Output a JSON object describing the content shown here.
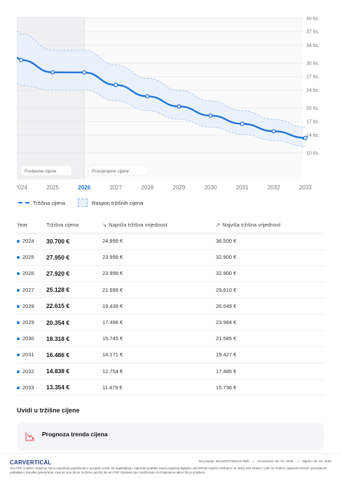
{
  "chart_data": {
    "type": "line",
    "x": [
      "2024",
      "2025",
      "2026",
      "2027",
      "2028",
      "2029",
      "2030",
      "2031",
      "2032",
      "2033"
    ],
    "series": [
      {
        "name": "Tržišna cijena",
        "values": [
          30700,
          27950,
          27920,
          25128,
          22615,
          20354,
          18318,
          16486,
          14838,
          13354
        ]
      },
      {
        "name": "Raspon tržišnih cijena (min)",
        "values": [
          24999,
          23999,
          23999,
          21599,
          19439,
          17496,
          15745,
          14171,
          12754,
          11479
        ]
      },
      {
        "name": "Raspon tržišnih cijena (max)",
        "values": [
          36500,
          32900,
          32900,
          29610,
          26649,
          23984,
          21585,
          19427,
          17485,
          15736
        ]
      }
    ],
    "y_ticks": [
      "40 tis.",
      "37 tis.",
      "34 tis.",
      "30 tis.",
      "27 tis.",
      "24 tis.",
      "20 tis.",
      "17 tis.",
      "14 tis.",
      "10 tis."
    ],
    "y_tick_values": [
      40000,
      37000,
      34000,
      30000,
      27000,
      24000,
      20000,
      17000,
      14000,
      10000
    ],
    "ylim": [
      7500,
      40000
    ],
    "grid": true,
    "region_labels": {
      "past": "Povijesne cijene",
      "future": "Procijenjene cijene"
    },
    "highlight_year": "2026",
    "colors": {
      "line": "#1f74d6",
      "band": "#e8f0fb",
      "band_edge": "#9dbfec",
      "past_shade": "#f0f0f2"
    }
  },
  "legend": {
    "line_label": "Tržišna cijena",
    "band_label": "Raspon tržišnih cijena"
  },
  "table": {
    "headers": {
      "year": "Year",
      "price": "Tržišna cijena",
      "min": "Najniža tržišna vrijednost",
      "max": "Najviša tržišna vrijednost"
    },
    "rows": [
      {
        "year": "2024",
        "price": "30.700 €",
        "min": "24.999 €",
        "max": "36.500 €"
      },
      {
        "year": "2025",
        "price": "27.950 €",
        "min": "23.999 €",
        "max": "32.900 €"
      },
      {
        "year": "2026",
        "price": "27.920 €",
        "min": "23.999 €",
        "max": "32.900 €"
      },
      {
        "year": "2027",
        "price": "25.128 €",
        "min": "21.599 €",
        "max": "29.610 €"
      },
      {
        "year": "2028",
        "price": "22.615 €",
        "min": "19.439 €",
        "max": "26.649 €"
      },
      {
        "year": "2029",
        "price": "20.354 €",
        "min": "17.496 €",
        "max": "23.984 €"
      },
      {
        "year": "2030",
        "price": "18.318 €",
        "min": "15.745 €",
        "max": "21.585 €"
      },
      {
        "year": "2031",
        "price": "16.486 €",
        "min": "14.171 €",
        "max": "19.427 €"
      },
      {
        "year": "2032",
        "price": "14.838 €",
        "min": "12.754 €",
        "max": "17.485 €"
      },
      {
        "year": "2033",
        "price": "13.354 €",
        "min": "11.479 €",
        "max": "15.736 €"
      }
    ]
  },
  "insights": {
    "heading": "Uvidi u tržišne cijene",
    "card_title": "Prognoza trenda cijena",
    "card_icon": "trend-down-icon"
  },
  "footer": {
    "logo": "CARVERTICAL",
    "vin": "Broj šasije: WAUZZZF30K1017555",
    "generated": "Generirano: 08. 02. 2026.",
    "expires": "Istječe: 08. 03. 2026.",
    "disclaimer": "Ovo PDF izvješće uključuje samo najvažnije pojedinosti iz povijesti vozila. Za najdetaljnije i najnovije podatke uvijek pogledaj digitalno carVertical izvješće dostupno na našoj web stranici. Lako se trudimo osigurati točnost i pouzdanost podataka u trenutku generiranja, imaj na umu da ne možemo jamčiti da ovo PDF datoteka nije modificirana ili izmijenjena nakon što je izrađena."
  }
}
